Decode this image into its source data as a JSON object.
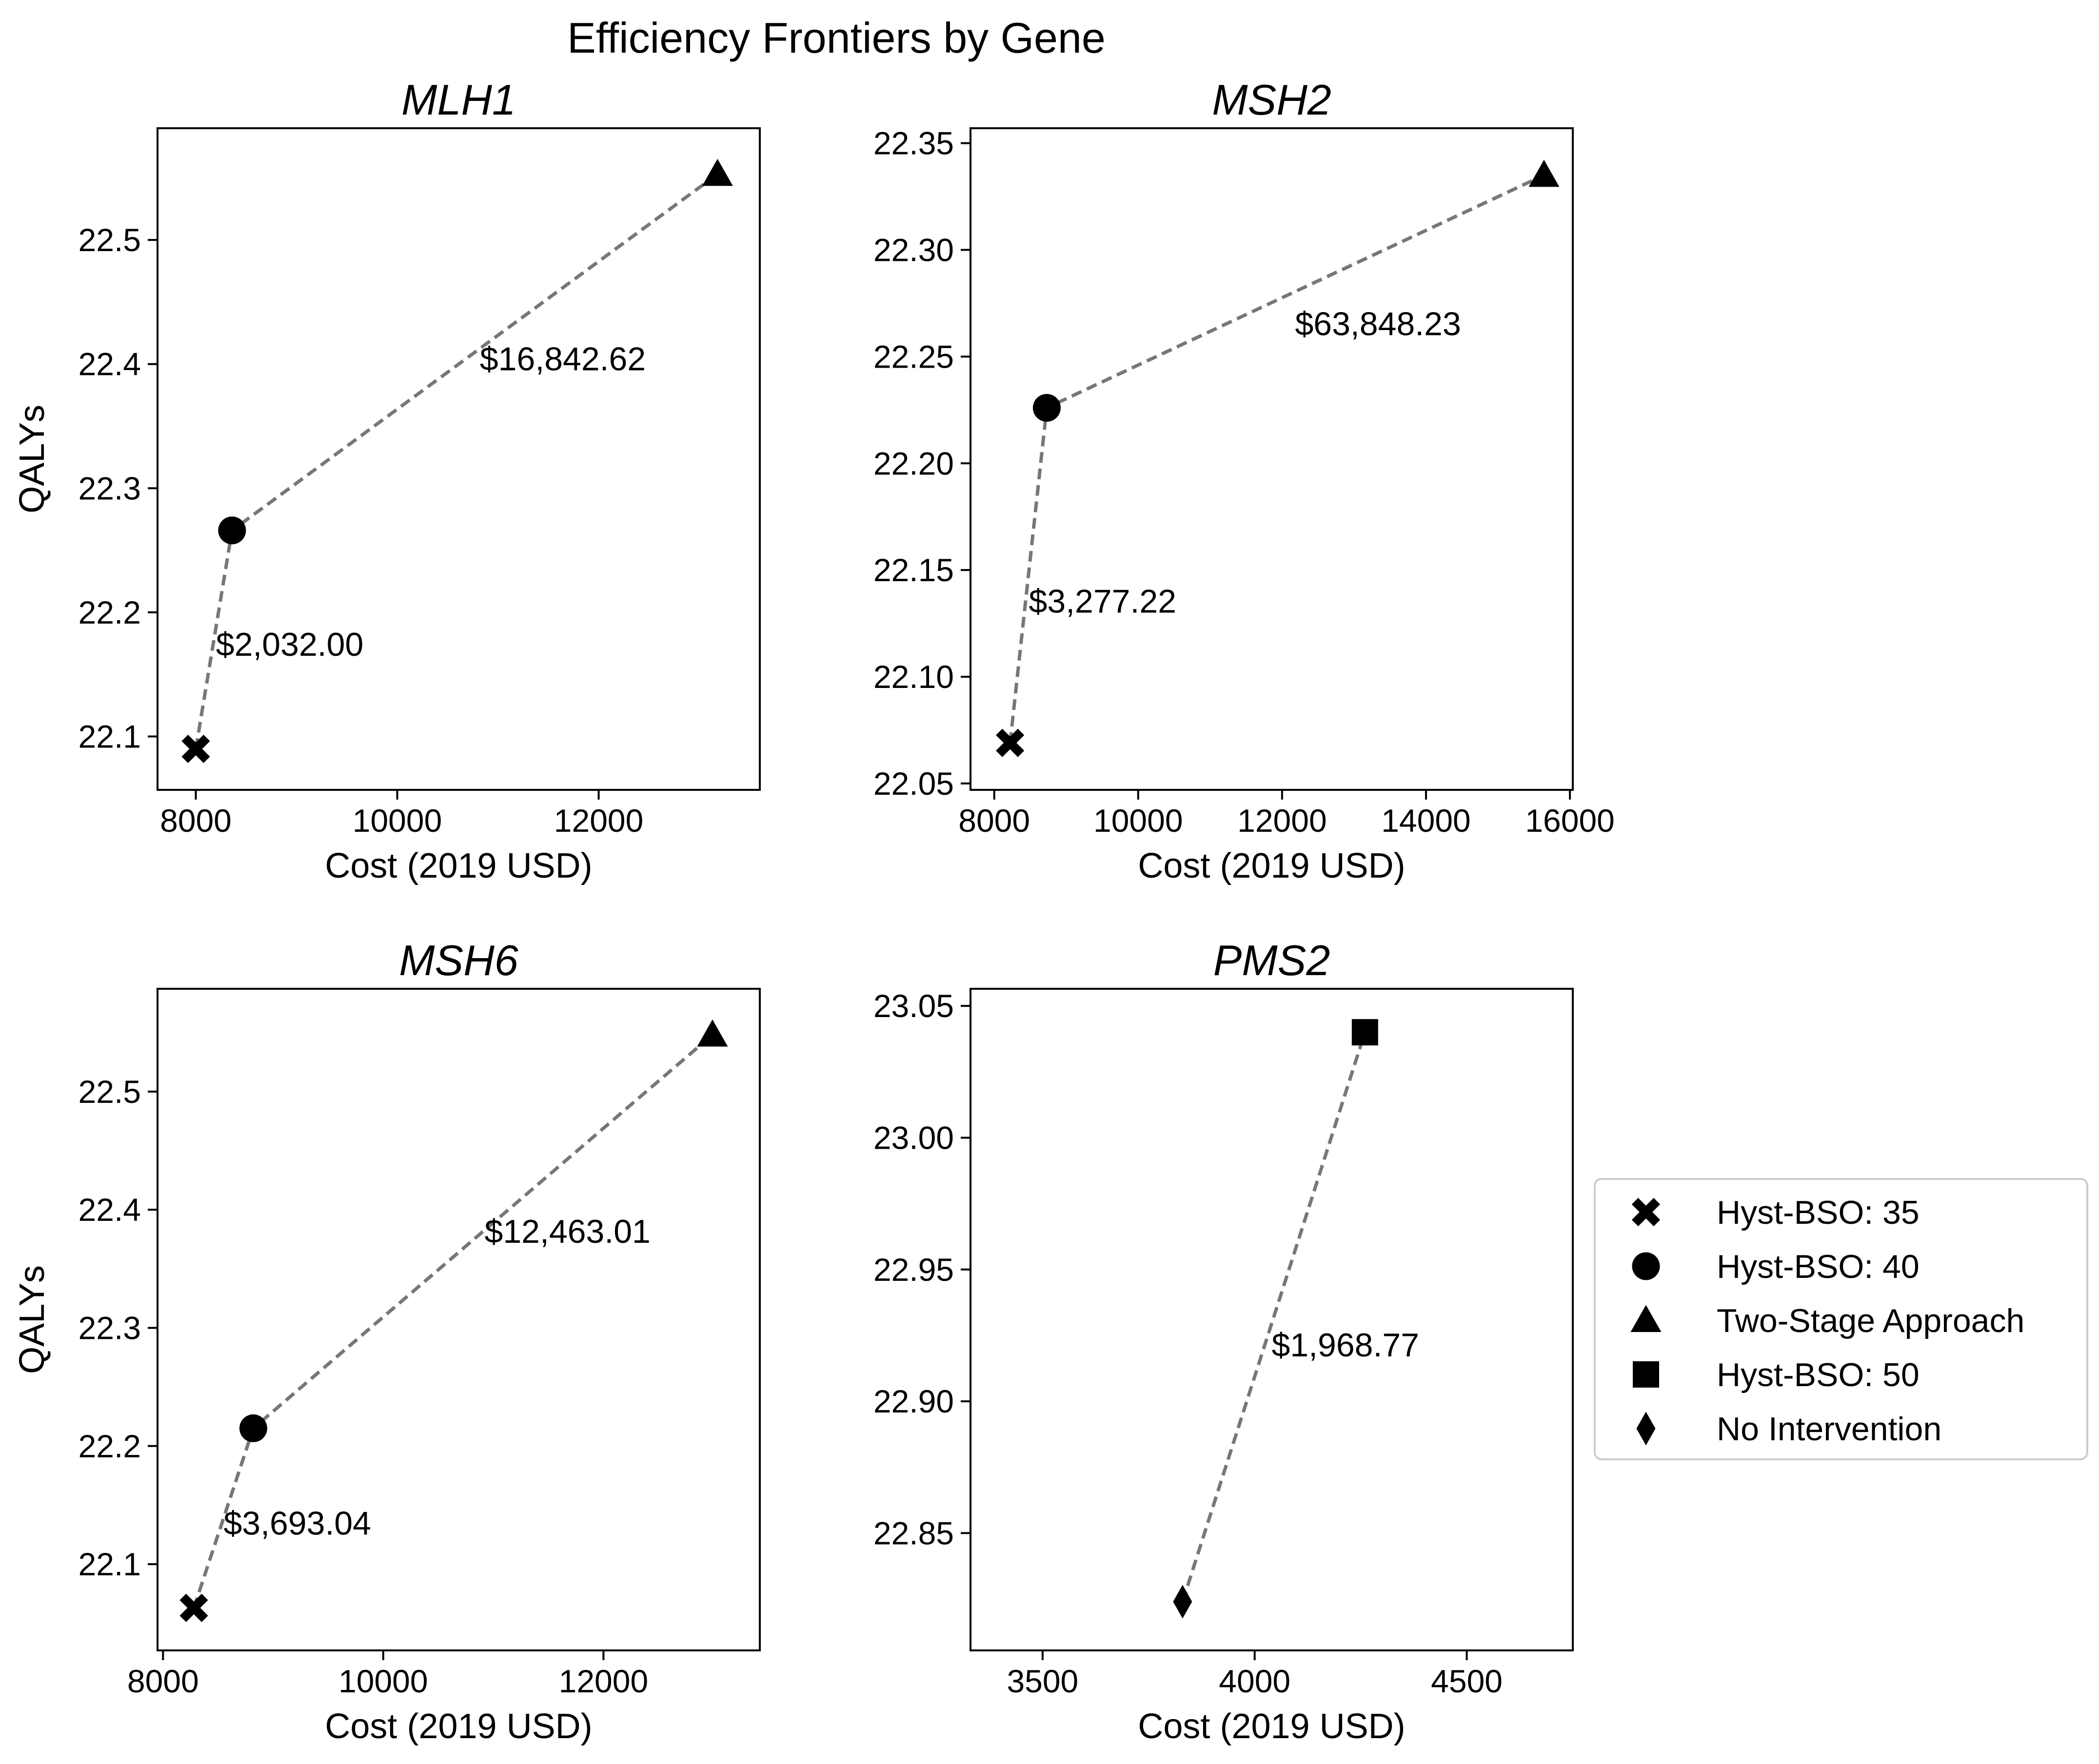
{
  "title": "Efficiency Frontiers by Gene",
  "colors": {
    "frontier_line": "#777777",
    "marker": "#000000",
    "frame": "#000000"
  },
  "legend": {
    "placement": "right",
    "items": [
      {
        "label": "Hyst-BSO: 35",
        "marker": "x-icon"
      },
      {
        "label": "Hyst-BSO: 40",
        "marker": "circle-icon"
      },
      {
        "label": "Two-Stage Approach",
        "marker": "triangle-icon"
      },
      {
        "label": "Hyst-BSO: 50",
        "marker": "square-icon"
      },
      {
        "label": "No Intervention",
        "marker": "diamond-icon"
      }
    ]
  },
  "chart_data": [
    {
      "type": "scatter",
      "title": "MLH1",
      "xlabel": "Cost (2019 USD)",
      "ylabel": "QALYs",
      "xlim": [
        7620,
        13600
      ],
      "ylim": [
        22.057,
        22.59
      ],
      "xticks": [
        8000,
        10000,
        12000
      ],
      "yticks": [
        22.1,
        22.2,
        22.3,
        22.4,
        22.5
      ],
      "ytick_decimals": 1,
      "grid": false,
      "points": [
        {
          "strategy": "Hyst-BSO: 35",
          "marker": "x",
          "x": 8000,
          "y": 22.09
        },
        {
          "strategy": "Hyst-BSO: 40",
          "marker": "circle",
          "x": 8360,
          "y": 22.266
        },
        {
          "strategy": "Two-Stage Approach",
          "marker": "triangle",
          "x": 13180,
          "y": 22.553
        }
      ],
      "annotations": [
        {
          "text": "$2,032.00",
          "x": 8200,
          "y": 22.165
        },
        {
          "text": "$16,842.62",
          "x": 10820,
          "y": 22.395
        }
      ]
    },
    {
      "type": "scatter",
      "title": "MSH2",
      "xlabel": "Cost (2019 USD)",
      "ylabel": "QALYs",
      "xlim": [
        7670,
        16040
      ],
      "ylim": [
        22.047,
        22.357
      ],
      "xticks": [
        8000,
        10000,
        12000,
        14000,
        16000
      ],
      "yticks": [
        22.05,
        22.1,
        22.15,
        22.2,
        22.25,
        22.3,
        22.35
      ],
      "ytick_decimals": 2,
      "grid": false,
      "points": [
        {
          "strategy": "Hyst-BSO: 35",
          "marker": "x",
          "x": 8220,
          "y": 22.069
        },
        {
          "strategy": "Hyst-BSO: 40",
          "marker": "circle",
          "x": 8730,
          "y": 22.226
        },
        {
          "strategy": "Two-Stage Approach",
          "marker": "triangle",
          "x": 15640,
          "y": 22.335
        }
      ],
      "annotations": [
        {
          "text": "$3,277.22",
          "x": 8480,
          "y": 22.13
        },
        {
          "text": "$63,848.23",
          "x": 12180,
          "y": 22.26
        }
      ]
    },
    {
      "type": "scatter",
      "title": "MSH6",
      "xlabel": "Cost (2019 USD)",
      "ylabel": "QALYs",
      "xlim": [
        7950,
        13420
      ],
      "ylim": [
        22.027,
        22.587
      ],
      "xticks": [
        8000,
        10000,
        12000
      ],
      "yticks": [
        22.1,
        22.2,
        22.3,
        22.4,
        22.5
      ],
      "ytick_decimals": 1,
      "grid": false,
      "points": [
        {
          "strategy": "Hyst-BSO: 35",
          "marker": "x",
          "x": 8280,
          "y": 22.063
        },
        {
          "strategy": "Hyst-BSO: 40",
          "marker": "circle",
          "x": 8820,
          "y": 22.215
        },
        {
          "strategy": "Two-Stage Approach",
          "marker": "triangle",
          "x": 12990,
          "y": 22.548
        }
      ],
      "annotations": [
        {
          "text": "$3,693.04",
          "x": 8550,
          "y": 22.125
        },
        {
          "text": "$12,463.01",
          "x": 10920,
          "y": 22.372
        }
      ]
    },
    {
      "type": "scatter",
      "title": "PMS2",
      "xlabel": "Cost (2019 USD)",
      "ylabel": "QALYs",
      "xlim": [
        3330,
        4750
      ],
      "ylim": [
        22.8055,
        23.0565
      ],
      "xticks": [
        3500,
        4000,
        4500
      ],
      "yticks": [
        22.85,
        22.9,
        22.95,
        23.0,
        23.05
      ],
      "ytick_decimals": 2,
      "grid": false,
      "points": [
        {
          "strategy": "No Intervention",
          "marker": "diamond",
          "x": 3830,
          "y": 22.824
        },
        {
          "strategy": "Hyst-BSO: 50",
          "marker": "square",
          "x": 4260,
          "y": 23.04
        }
      ],
      "annotations": [
        {
          "text": "$1,968.77",
          "x": 4040,
          "y": 22.917
        }
      ]
    }
  ]
}
